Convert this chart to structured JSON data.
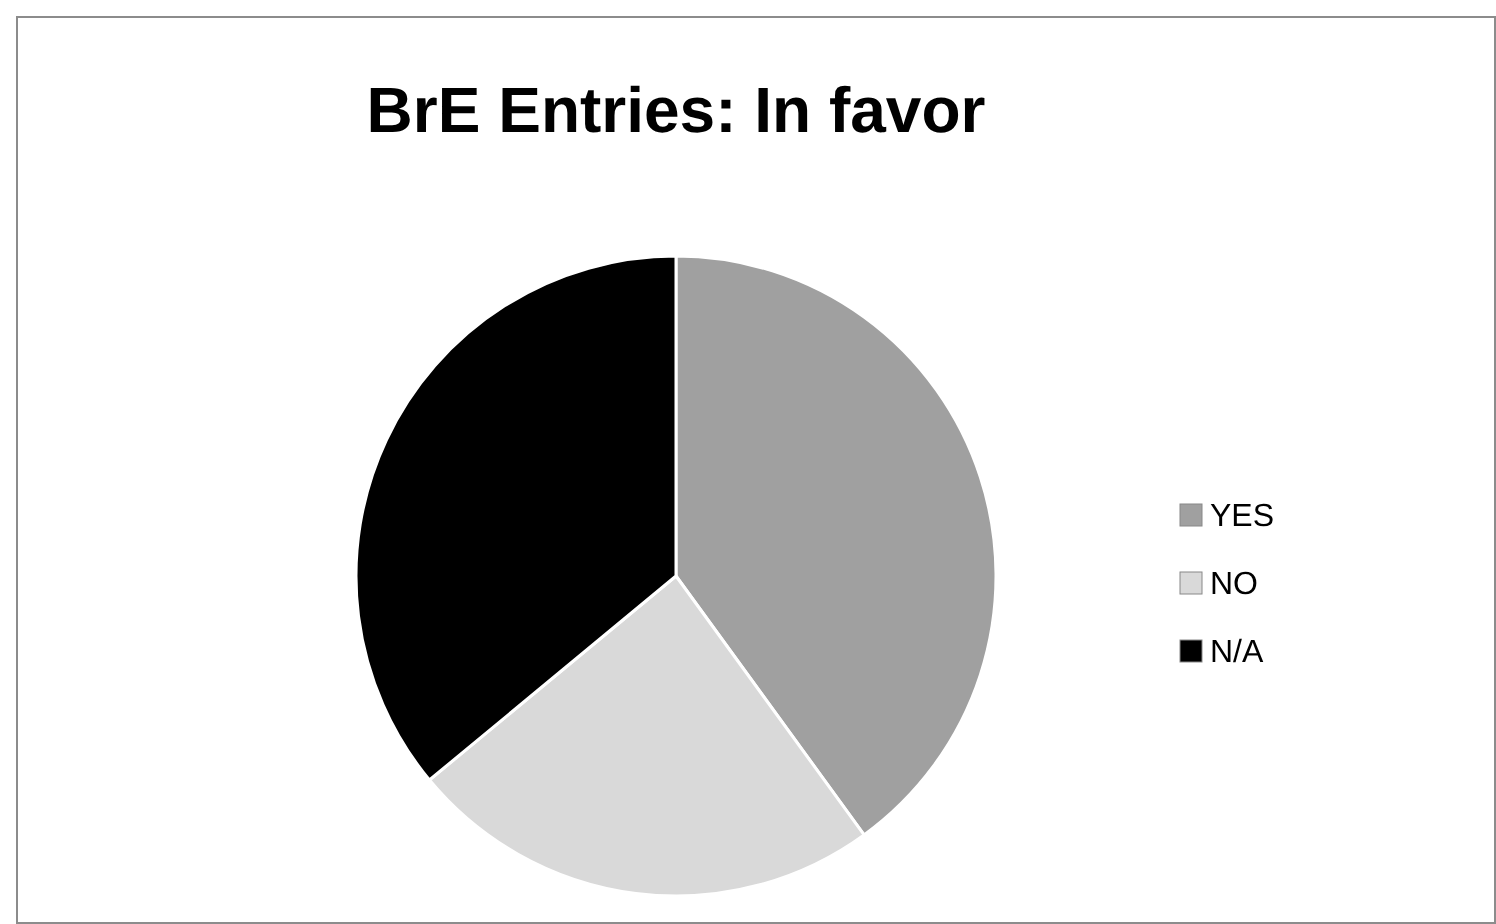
{
  "chart_data": {
    "type": "pie",
    "title": "BrE Entries: In favor",
    "categories": [
      "YES",
      "NO",
      "N/A"
    ],
    "values": [
      40,
      24,
      36
    ],
    "colors": [
      "#a0a0a0",
      "#d9d9d9",
      "#000000"
    ],
    "legend": "right"
  }
}
